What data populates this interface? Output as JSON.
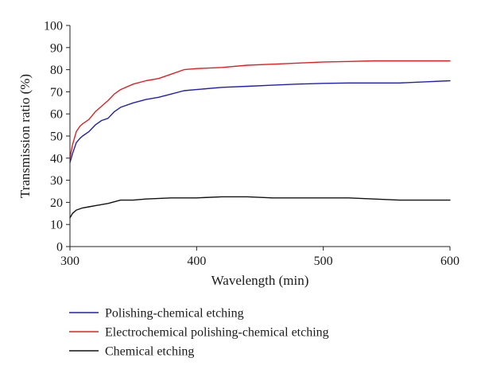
{
  "chart_data": {
    "type": "line",
    "xlabel": "Wavelength (min)",
    "ylabel": "Transmission ratio (%)",
    "xlim": [
      300,
      600
    ],
    "ylim": [
      0,
      100
    ],
    "x_ticks": [
      300,
      400,
      500,
      600
    ],
    "y_ticks": [
      0,
      10,
      20,
      30,
      40,
      50,
      60,
      70,
      80,
      90,
      100
    ],
    "grid": false,
    "legend_position": "bottom",
    "series": [
      {
        "name": "Polishing-chemical etching",
        "color": "#1f1fb4",
        "x": [
          300,
          302,
          305,
          308,
          310,
          315,
          320,
          325,
          330,
          335,
          340,
          350,
          360,
          370,
          380,
          390,
          400,
          420,
          440,
          460,
          480,
          500,
          520,
          540,
          560,
          580,
          600
        ],
        "y": [
          38,
          42,
          47,
          49,
          50,
          52,
          55,
          57,
          58,
          61,
          63,
          65,
          66.5,
          67.5,
          69,
          70.5,
          71,
          72,
          72.5,
          73,
          73.5,
          73.8,
          74,
          74,
          74,
          74.5,
          75
        ]
      },
      {
        "name": "Electrochemical polishing-chemical etching",
        "color": "#e02020",
        "x": [
          300,
          302,
          305,
          308,
          310,
          315,
          320,
          325,
          330,
          335,
          340,
          350,
          360,
          370,
          380,
          390,
          400,
          420,
          440,
          460,
          480,
          500,
          520,
          540,
          560,
          580,
          600
        ],
        "y": [
          40,
          46,
          52,
          54.5,
          55.5,
          57.5,
          61,
          63.5,
          66,
          69,
          71,
          73.5,
          75,
          76,
          78,
          80,
          80.5,
          81,
          82,
          82.5,
          83,
          83.5,
          83.7,
          84,
          84,
          84,
          84
        ]
      },
      {
        "name": "Chemical etching",
        "color": "#111111",
        "x": [
          300,
          302,
          305,
          310,
          315,
          320,
          330,
          340,
          350,
          360,
          380,
          400,
          420,
          440,
          460,
          480,
          500,
          520,
          540,
          560,
          580,
          600
        ],
        "y": [
          13,
          15,
          16.5,
          17.5,
          18,
          18.5,
          19.5,
          21,
          21,
          21.5,
          22,
          22,
          22.5,
          22.5,
          22,
          22,
          22,
          22,
          21.5,
          21,
          21,
          21
        ]
      }
    ]
  }
}
